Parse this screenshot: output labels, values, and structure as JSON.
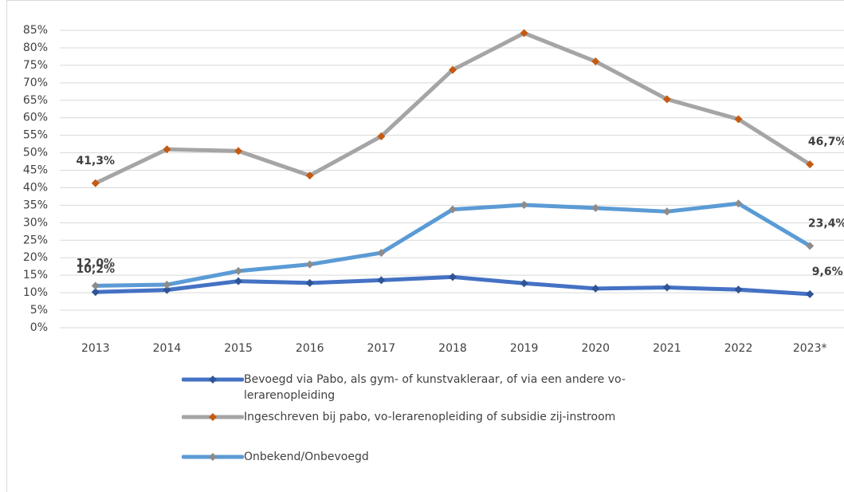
{
  "chart_data": {
    "type": "line",
    "categories": [
      "2013",
      "2014",
      "2015",
      "2016",
      "2017",
      "2018",
      "2019",
      "2020",
      "2021",
      "2022",
      "2023*"
    ],
    "ylim": [
      0,
      85
    ],
    "yticks": [
      {
        "value": 0,
        "label": "0%"
      },
      {
        "value": 5,
        "label": "5%"
      },
      {
        "value": 10,
        "label": "10%"
      },
      {
        "value": 15,
        "label": "15%"
      },
      {
        "value": 20,
        "label": "20%"
      },
      {
        "value": 25,
        "label": "25%"
      },
      {
        "value": 30,
        "label": "30%"
      },
      {
        "value": 35,
        "label": "35%"
      },
      {
        "value": 40,
        "label": "40%"
      },
      {
        "value": 45,
        "label": "45%"
      },
      {
        "value": 50,
        "label": "50%"
      },
      {
        "value": 55,
        "label": "55%"
      },
      {
        "value": 60,
        "label": "60%"
      },
      {
        "value": 65,
        "label": "65%"
      },
      {
        "value": 70,
        "label": "70%"
      },
      {
        "value": 75,
        "label": "75%"
      },
      {
        "value": 80,
        "label": "80%"
      },
      {
        "value": 85,
        "label": "85%"
      }
    ],
    "grid": true,
    "legend": "bottom",
    "series": [
      {
        "name": "Bevoegd via Pabo, als gym- of kunstvakleraar, of via een andere vo-lerarenopleiding",
        "color": "#4472c4",
        "marker_color": "#2f5597",
        "values": [
          10.2,
          10.8,
          13.3,
          12.8,
          13.6,
          14.5,
          12.7,
          11.2,
          11.5,
          10.9,
          9.6
        ],
        "value_labels": [
          "10,2%",
          null,
          null,
          null,
          null,
          null,
          null,
          null,
          null,
          null,
          "9,6%"
        ]
      },
      {
        "name": "Ingeschreven bij pabo, vo-lerarenopleiding of subsidie zij-instroom",
        "color": "#a5a5a5",
        "marker_color": "#c55a11",
        "values": [
          41.3,
          51.0,
          50.5,
          43.5,
          54.7,
          73.7,
          84.2,
          76.1,
          65.3,
          59.6,
          46.7
        ],
        "value_labels": [
          "41,3%",
          null,
          null,
          null,
          null,
          null,
          null,
          null,
          null,
          null,
          "46,7%"
        ]
      },
      {
        "name": "Onbekend/Onbevoegd",
        "color": "#5b9bd5",
        "marker_color": "#8c8c8c",
        "values": [
          12.0,
          12.3,
          16.2,
          18.1,
          21.4,
          33.8,
          35.1,
          34.2,
          33.2,
          35.5,
          23.4
        ],
        "value_labels": [
          "12,0%",
          null,
          null,
          null,
          null,
          null,
          null,
          null,
          null,
          null,
          "23,4%"
        ]
      }
    ]
  }
}
